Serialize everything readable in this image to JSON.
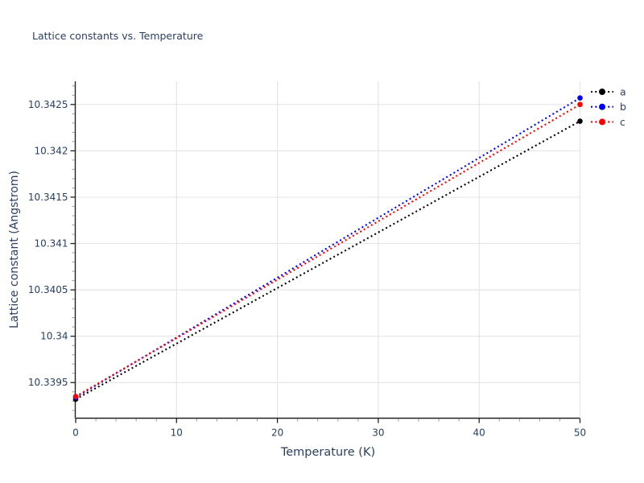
{
  "chart_data": {
    "type": "line",
    "title": "Lattice constants vs. Temperature",
    "xlabel": "Temperature (K)",
    "ylabel": "Lattice constant (Angstrom)",
    "x_range": [
      0,
      50
    ],
    "y_range": [
      10.33912,
      10.34275
    ],
    "x_major_ticks": [
      0,
      10,
      20,
      30,
      40,
      50
    ],
    "x_minor_step": 2,
    "y_major_ticks": [
      10.3395,
      10.34,
      10.3405,
      10.341,
      10.3415,
      10.342,
      10.3425
    ],
    "y_tick_labels": [
      "10.3395",
      "10.34",
      "10.3405",
      "10.341",
      "10.3415",
      "10.342",
      "10.3425"
    ],
    "y_minor_step": 0.0001,
    "grid": true,
    "legend_position": "outside-top-right",
    "line_style": "dot",
    "colors": {
      "font": "#2a3f5f",
      "grid": "#e6e6e6",
      "axis": "#222222",
      "minor_tick": "#999999"
    },
    "series": [
      {
        "name": "a",
        "color": "#000000",
        "dash": "dot",
        "x": [
          0,
          50
        ],
        "y": [
          10.33932,
          10.34232
        ]
      },
      {
        "name": "b",
        "color": "#0000ff",
        "dash": "dot",
        "x": [
          0,
          50
        ],
        "y": [
          10.33934,
          10.34257
        ]
      },
      {
        "name": "c",
        "color": "#ff0000",
        "dash": "dot",
        "x": [
          0,
          50
        ],
        "y": [
          10.33935,
          10.3425
        ]
      }
    ]
  }
}
